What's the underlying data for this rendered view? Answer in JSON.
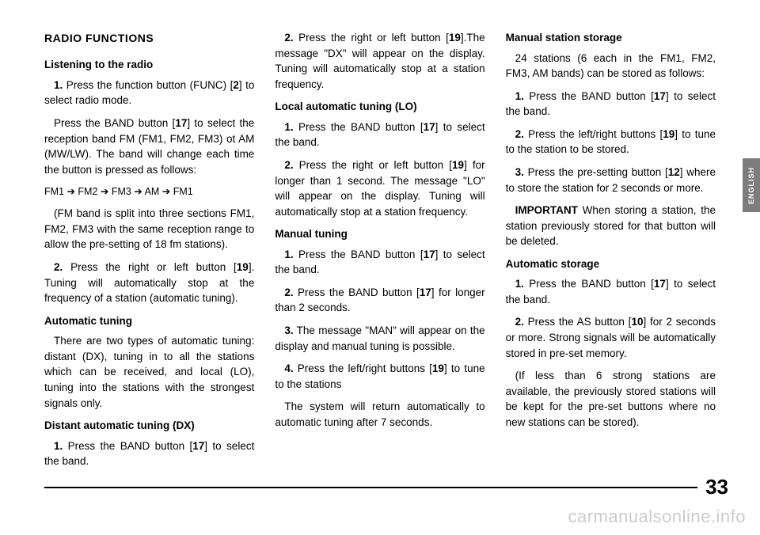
{
  "sideTab": "ENGLISH",
  "pageNumber": "33",
  "watermark": "carmanualsonline.info",
  "col1": {
    "h2": "RADIO FUNCTIONS",
    "sec1": {
      "h3": "Listening to the radio",
      "p1a": "1.",
      "p1b": " Press the function button (FUNC) [",
      "p1c": "2",
      "p1d": "] to select radio mode.",
      "p2a": "Press the BAND button [",
      "p2b": "17",
      "p2c": "] to select the reception band FM (FM1, FM2, FM3) ot AM (MW/LW). The band will change each time the button is pressed as follows:",
      "p3": "FM1 ➔ FM2 ➔ FM3 ➔ AM ➔ FM1",
      "p4": "(FM band is split into three sections FM1, FM2, FM3 with the same reception range to allow the pre-setting of 18 fm stations).",
      "p5a": "2.",
      "p5b": " Press the right or left button [",
      "p5c": "19",
      "p5d": "]. Tuning will automatically stop at the frequency of a station (automatic tuning)."
    },
    "sec2": {
      "h3": "Automatic tuning",
      "p1": "There are two types of automatic tuning: distant (DX), tuning in to all the stations which can be received, and local (LO), tuning into the stations with the strongest signals only."
    },
    "sec3": {
      "h3": "Distant automatic tuning (DX)",
      "p1a": "1.",
      "p1b": " Press the BAND button [",
      "p1c": "17",
      "p1d": "] to select the band."
    }
  },
  "col2": {
    "top": {
      "p1a": "2.",
      "p1b": " Press the right or left button [",
      "p1c": "19",
      "p1d": "].The message \"DX\" will appear on the display. Tuning will automatically stop at a station frequency."
    },
    "sec1": {
      "h3": "Local automatic tuning (LO)",
      "p1a": "1.",
      "p1b": " Press the BAND button [",
      "p1c": "17",
      "p1d": "] to select the band.",
      "p2a": "2.",
      "p2b": " Press the right or left button [",
      "p2c": "19",
      "p2d": "] for longer than 1 second. The message \"LO\" will appear on the display. Tuning will automatically stop at a station frequency."
    },
    "sec2": {
      "h3": "Manual tuning",
      "p1a": "1.",
      "p1b": " Press the BAND button [",
      "p1c": "17",
      "p1d": "] to select the band.",
      "p2a": "2.",
      "p2b": " Press the BAND button [",
      "p2c": "17",
      "p2d": "] for longer than 2 seconds.",
      "p3a": "3.",
      "p3b": " The message \"MAN\" will appear on the display and manual tuning is possible.",
      "p4a": "4.",
      "p4b": " Press the left/right buttons [",
      "p4c": "19",
      "p4d": "] to tune to the stations",
      "p5": "The system will return automatically to automatic tuning after 7 seconds."
    }
  },
  "col3": {
    "sec1": {
      "h3": "Manual station storage",
      "p1": "24 stations (6 each in the FM1, FM2, FM3, AM bands) can be stored as follows:",
      "p2a": "1.",
      "p2b": " Press the BAND button [",
      "p2c": "17",
      "p2d": "] to select the band.",
      "p3a": "2.",
      "p3b": " Press the left/right buttons [",
      "p3c": "19",
      "p3d": "] to tune to the station to be stored.",
      "p4a": "3.",
      "p4b": " Press the pre-setting button [",
      "p4c": "12",
      "p4d": "] where to store the station for 2 seconds or more.",
      "p5a": "IMPORTANT",
      "p5b": " When storing a station, the station previously stored for that button will be deleted."
    },
    "sec2": {
      "h3": "Automatic storage",
      "p1a": "1.",
      "p1b": " Press the BAND button [",
      "p1c": "17",
      "p1d": "] to select the band.",
      "p2a": "2.",
      "p2b": " Press the AS button [",
      "p2c": "10",
      "p2d": "] for 2 seconds or more. Strong signals will be automatically stored in pre-set memory.",
      "p3": "(If less than 6 strong stations are available, the previously stored stations will be kept for the pre-set buttons where no new stations can be stored)."
    }
  }
}
